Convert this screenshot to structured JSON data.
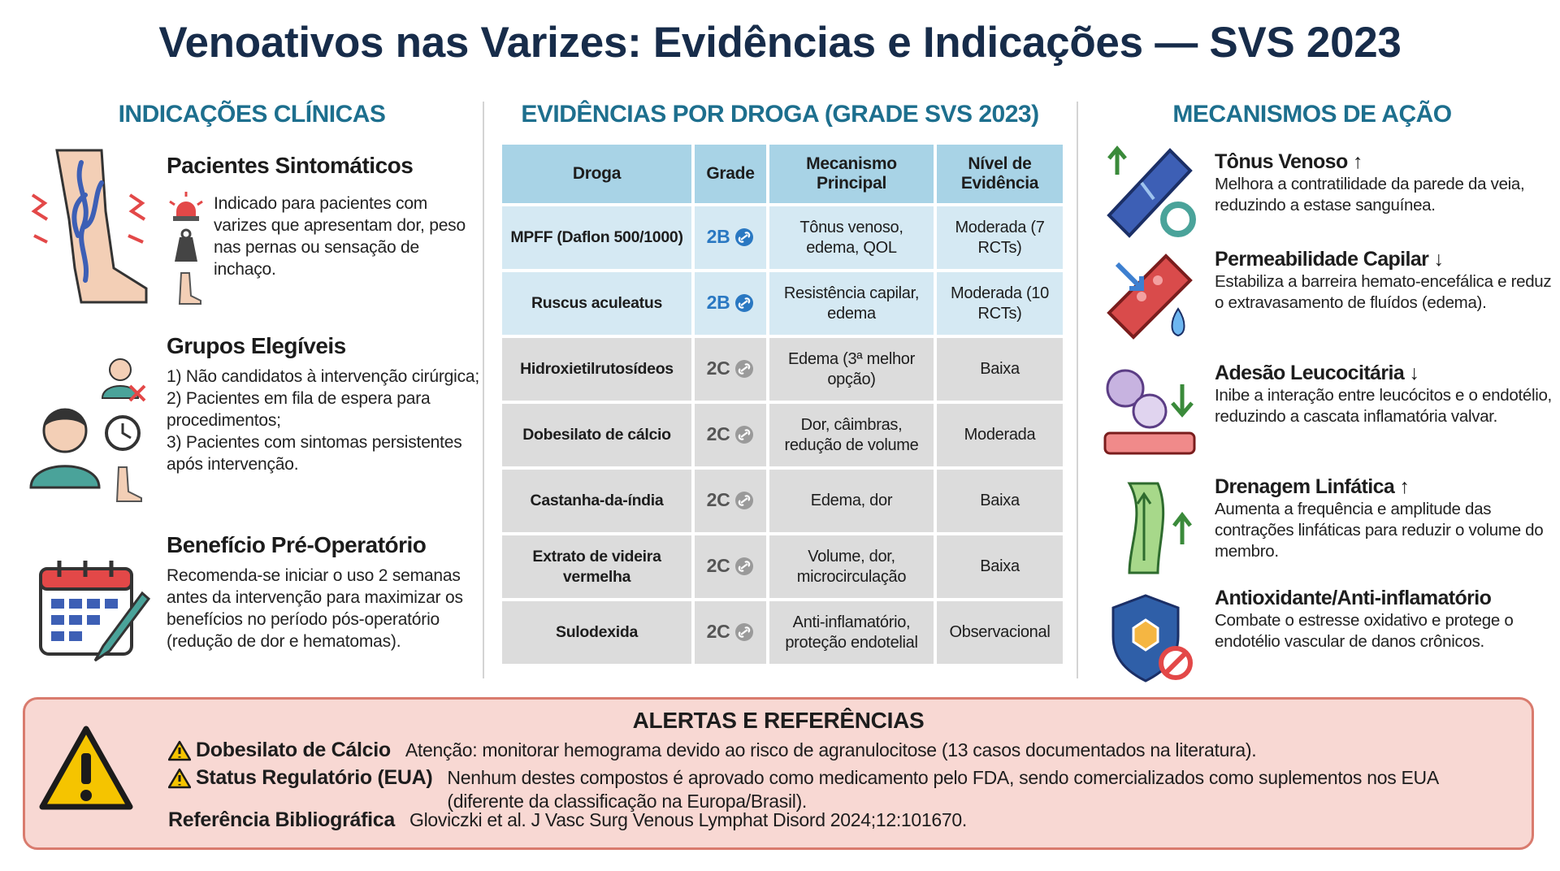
{
  "title": "Venoativos nas Varizes: Evidências e Indicações — SVS 2023",
  "indications": {
    "heading": "INDICAÇÕES CLÍNICAS",
    "symptomatic": {
      "title": "Pacientes Sintomáticos",
      "text": "Indicado para pacientes com varizes que apresentam dor, peso nas pernas ou sensação de inchaço."
    },
    "groups": {
      "title": "Grupos Elegíveis",
      "items": [
        "1) Não candidatos à intervenção cirúrgica;",
        "2) Pacientes em fila de espera para procedimentos;",
        "3) Pacientes com sintomas persistentes após intervenção."
      ]
    },
    "preop": {
      "title": "Benefício Pré-Operatório",
      "text": "Recomenda-se iniciar o uso 2 semanas antes da intervenção para maximizar os benefícios no período pós-operatório (redução de dor e hematomas)."
    }
  },
  "evidence": {
    "heading": "EVIDÊNCIAS POR DROGA (GRADE SVS 2023)",
    "table": {
      "headers": [
        "Droga",
        "Grade",
        "Mecanismo Principal",
        "Nível de Evidência"
      ],
      "rows": [
        [
          "MPFF (Daflon 500/1000)",
          "2B",
          "Tônus venoso, edema, QOL",
          "Moderada (7 RCTs)"
        ],
        [
          "Ruscus aculeatus",
          "2B",
          "Resistência capilar, edema",
          "Moderada (10 RCTs)"
        ],
        [
          "Hidroxietilrutosídeos",
          "2C",
          "Edema (3ª melhor opção)",
          "Baixa"
        ],
        [
          "Dobesilato de cálcio",
          "2C",
          "Dor, câimbras, redução de volume",
          "Moderada"
        ],
        [
          "Castanha-da-índia",
          "2C",
          "Edema, dor",
          "Baixa"
        ],
        [
          "Extrato de videira vermelha",
          "2C",
          "Volume, dor, microcirculação",
          "Baixa"
        ],
        [
          "Sulodexida",
          "2C",
          "Anti-inflamatório, proteção endotelial",
          "Observacional"
        ]
      ]
    }
  },
  "mechanisms": {
    "heading": "MECANISMOS DE AÇÃO",
    "items": [
      {
        "title": "Tônus Venoso ↑",
        "text": "Melhora a contratilidade da parede da veia, reduzindo a estase sanguínea."
      },
      {
        "title": "Permeabilidade Capilar ↓",
        "text": "Estabiliza a barreira hemato-encefálica e reduz o extravasamento de fluídos (edema)."
      },
      {
        "title": "Adesão Leucocitária ↓",
        "text": "Inibe a interação entre leucócitos e o endotélio, reduzindo a cascata inflamatória valvar."
      },
      {
        "title": "Drenagem Linfática ↑",
        "text": "Aumenta a frequência e amplitude das contrações linfáticas para reduzir o volume do membro."
      },
      {
        "title": "Antioxidante/Anti-inflamatório",
        "text": "Combate o estresse oxidativo e protege o endotélio vascular de danos crônicos."
      }
    ]
  },
  "alerts": {
    "heading": "ALERTAS E REFERÊNCIAS",
    "items": [
      {
        "label": "Dobesilato de Cálcio",
        "text": "Atenção: monitorar hemograma devido ao risco de agranulocitose (13 casos documentados na literatura)."
      },
      {
        "label": "Status Regulatório (EUA)",
        "text": "Nenhum destes compostos é aprovado como medicamento pelo FDA, sendo comercializados como suplementos nos EUA (diferente da classificação na Europa/Brasil)."
      }
    ],
    "reference": {
      "label": "Referência Bibliográfica",
      "text": "Gloviczki et al. J Vasc Surg Venous Lymphat Disord 2024;12:101670."
    }
  }
}
